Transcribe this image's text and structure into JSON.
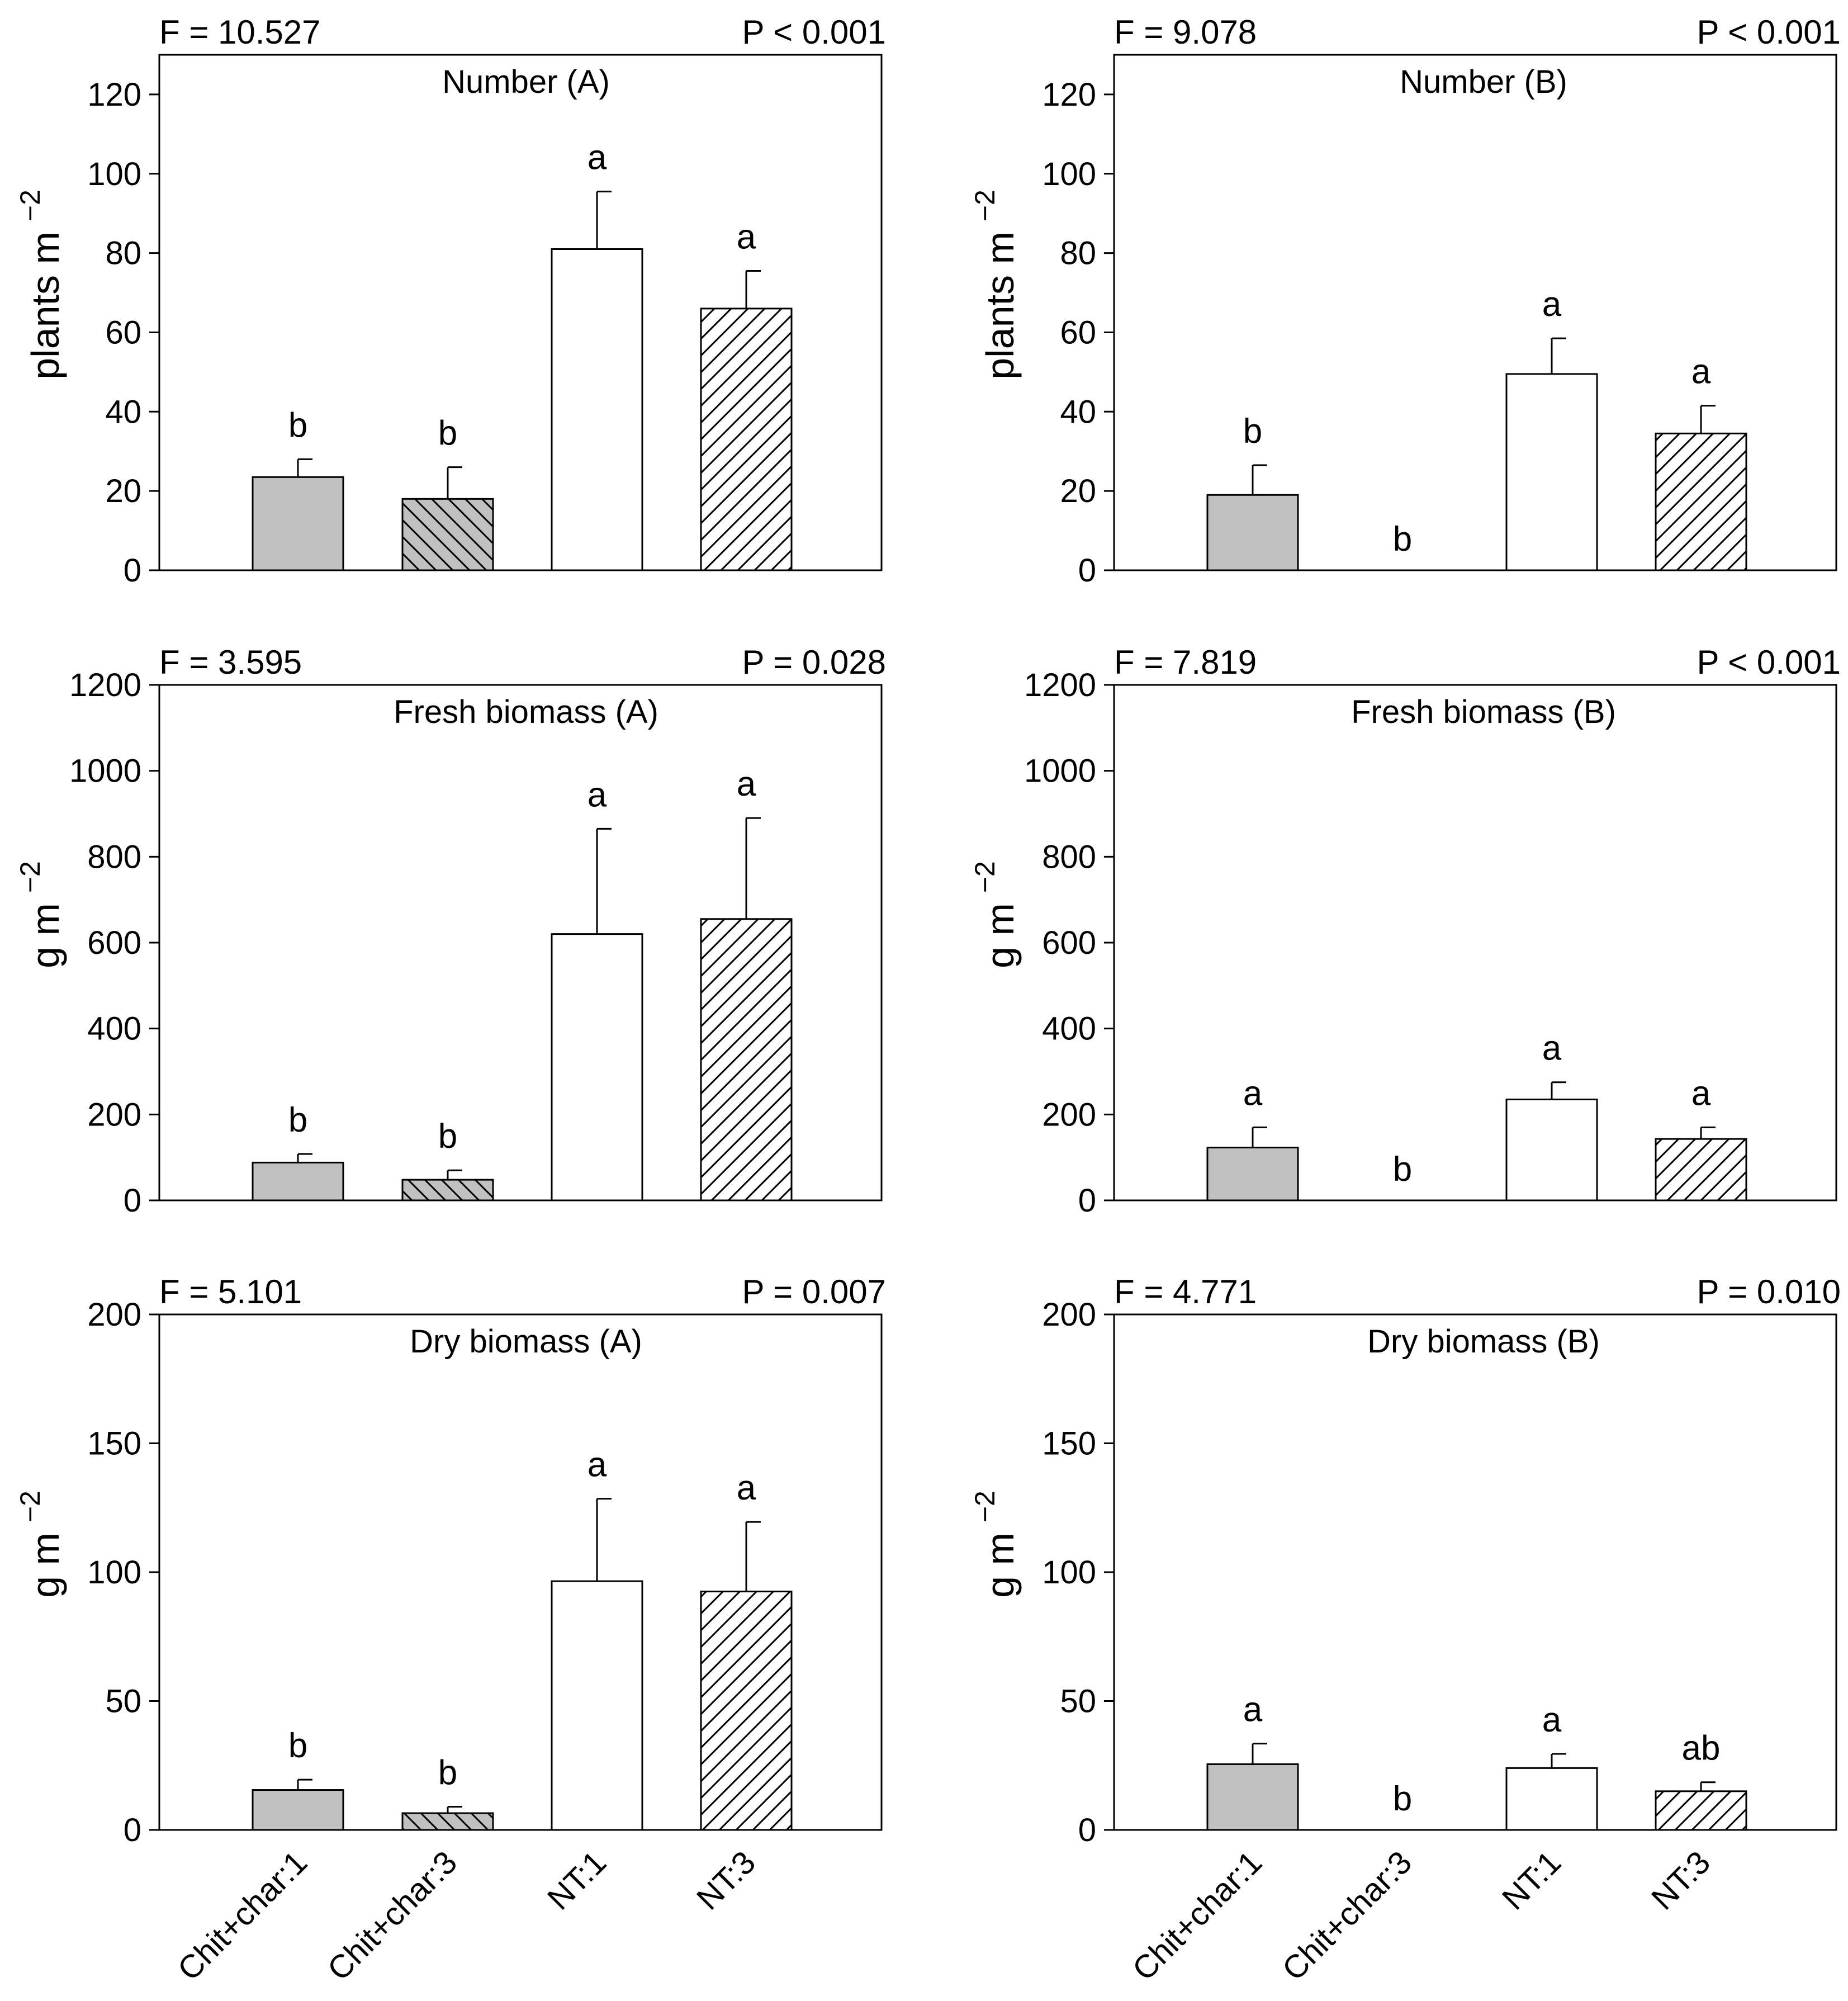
{
  "categories": [
    "Chit+char:1",
    "Chit+char:3",
    "NT:1",
    "NT:3"
  ],
  "colors": {
    "fill_gray": "#c0c0c0",
    "fill_white": "#ffffff",
    "ink": "#000000"
  },
  "patterns": [
    "solid-gray",
    "backslash-gray",
    "solid-white",
    "slash-white"
  ],
  "chart_data": [
    {
      "type": "bar",
      "title": "Number (A)",
      "f_stat": "F = 10.527",
      "p_value": "P < 0.001",
      "ylabel": "plants m",
      "ylabel_sup": "−2",
      "ylim": [
        0,
        130
      ],
      "yticks": [
        0,
        20,
        40,
        60,
        80,
        100,
        120
      ],
      "values": [
        23.5,
        18,
        81,
        66
      ],
      "errors": [
        4.5,
        8,
        14.5,
        9.5
      ],
      "letters": [
        "b",
        "b",
        "a",
        "a"
      ]
    },
    {
      "type": "bar",
      "title": "Number (B)",
      "f_stat": "F = 9.078",
      "p_value": "P < 0.001",
      "ylabel": "plants m",
      "ylabel_sup": "−2",
      "ylim": [
        0,
        130
      ],
      "yticks": [
        0,
        20,
        40,
        60,
        80,
        100,
        120
      ],
      "values": [
        19,
        0,
        49.5,
        34.5
      ],
      "errors": [
        7.5,
        0,
        9,
        7
      ],
      "letters": [
        "b",
        "b",
        "a",
        "a"
      ]
    },
    {
      "type": "bar",
      "title": "Fresh biomass (A)",
      "f_stat": "F = 3.595",
      "p_value": "P = 0.028",
      "ylabel": "g m",
      "ylabel_sup": "−2",
      "ylim": [
        0,
        1200
      ],
      "yticks": [
        0,
        200,
        400,
        600,
        800,
        1000,
        1200
      ],
      "values": [
        88,
        48,
        620,
        655
      ],
      "errors": [
        20,
        22,
        245,
        235
      ],
      "letters": [
        "b",
        "b",
        "a",
        "a"
      ]
    },
    {
      "type": "bar",
      "title": "Fresh biomass (B)",
      "f_stat": "F = 7.819",
      "p_value": "P < 0.001",
      "ylabel": "g m",
      "ylabel_sup": "−2",
      "ylim": [
        0,
        1200
      ],
      "yticks": [
        0,
        200,
        400,
        600,
        800,
        1000,
        1200
      ],
      "values": [
        123,
        0,
        235,
        143
      ],
      "errors": [
        47,
        0,
        40,
        27
      ],
      "letters": [
        "a",
        "b",
        "a",
        "a"
      ]
    },
    {
      "type": "bar",
      "title": "Dry biomass (A)",
      "f_stat": "F = 5.101",
      "p_value": "P = 0.007",
      "ylabel": "g m",
      "ylabel_sup": "−2",
      "ylim": [
        0,
        200
      ],
      "yticks": [
        0,
        50,
        100,
        150,
        200
      ],
      "values": [
        15.5,
        6.5,
        96.5,
        92.5
      ],
      "errors": [
        4,
        2.5,
        32,
        27
      ],
      "letters": [
        "b",
        "b",
        "a",
        "a"
      ]
    },
    {
      "type": "bar",
      "title": "Dry biomass (B)",
      "f_stat": "F = 4.771",
      "p_value": "P = 0.010",
      "ylabel": "g m",
      "ylabel_sup": "−2",
      "ylim": [
        0,
        200
      ],
      "yticks": [
        0,
        50,
        100,
        150,
        200
      ],
      "values": [
        25.5,
        0,
        24,
        15
      ],
      "errors": [
        8,
        0,
        5.5,
        3.5
      ],
      "letters": [
        "a",
        "b",
        "a",
        "ab"
      ]
    }
  ]
}
